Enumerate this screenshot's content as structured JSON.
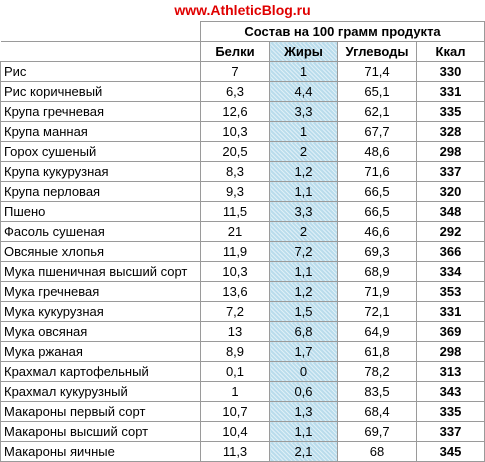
{
  "site_title": "www.AthleticBlog.ru",
  "table": {
    "group_header": "Состав на 100 грамм продукта",
    "columns": [
      "Белки",
      "Жиры",
      "Углеводы",
      "Ккал"
    ],
    "rows": [
      {
        "name": "Рис",
        "protein": "7",
        "fat": "1",
        "carbs": "71,4",
        "kcal": "330"
      },
      {
        "name": "Рис коричневый",
        "protein": "6,3",
        "fat": "4,4",
        "carbs": "65,1",
        "kcal": "331"
      },
      {
        "name": "Крупа гречневая",
        "protein": "12,6",
        "fat": "3,3",
        "carbs": "62,1",
        "kcal": "335"
      },
      {
        "name": "Крупа манная",
        "protein": "10,3",
        "fat": "1",
        "carbs": "67,7",
        "kcal": "328"
      },
      {
        "name": "Горох сушеный",
        "protein": "20,5",
        "fat": "2",
        "carbs": "48,6",
        "kcal": "298"
      },
      {
        "name": "Крупа кукурузная",
        "protein": "8,3",
        "fat": "1,2",
        "carbs": "71,6",
        "kcal": "337"
      },
      {
        "name": "Крупа перловая",
        "protein": "9,3",
        "fat": "1,1",
        "carbs": "66,5",
        "kcal": "320"
      },
      {
        "name": "Пшено",
        "protein": "11,5",
        "fat": "3,3",
        "carbs": "66,5",
        "kcal": "348"
      },
      {
        "name": "Фасоль сушеная",
        "protein": "21",
        "fat": "2",
        "carbs": "46,6",
        "kcal": "292"
      },
      {
        "name": "Овсяные хлопья",
        "protein": "11,9",
        "fat": "7,2",
        "carbs": "69,3",
        "kcal": "366"
      },
      {
        "name": "Мука пшеничная высший сорт",
        "protein": "10,3",
        "fat": "1,1",
        "carbs": "68,9",
        "kcal": "334"
      },
      {
        "name": "Мука гречневая",
        "protein": "13,6",
        "fat": "1,2",
        "carbs": "71,9",
        "kcal": "353"
      },
      {
        "name": "Мука кукурузная",
        "protein": "7,2",
        "fat": "1,5",
        "carbs": "72,1",
        "kcal": "331"
      },
      {
        "name": "Мука овсяная",
        "protein": "13",
        "fat": "6,8",
        "carbs": "64,9",
        "kcal": "369"
      },
      {
        "name": "Мука ржаная",
        "protein": "8,9",
        "fat": "1,7",
        "carbs": "61,8",
        "kcal": "298"
      },
      {
        "name": "Крахмал картофельный",
        "protein": "0,1",
        "fat": "0",
        "carbs": "78,2",
        "kcal": "313"
      },
      {
        "name": "Крахмал кукурузный",
        "protein": "1",
        "fat": "0,6",
        "carbs": "83,5",
        "kcal": "343"
      },
      {
        "name": "Макароны первый сорт",
        "protein": "10,7",
        "fat": "1,3",
        "carbs": "68,4",
        "kcal": "335"
      },
      {
        "name": "Макароны высший сорт",
        "protein": "10,4",
        "fat": "1,1",
        "carbs": "69,7",
        "kcal": "337"
      },
      {
        "name": "Макароны яичные",
        "protein": "11,3",
        "fat": "2,1",
        "carbs": "68",
        "kcal": "345"
      }
    ]
  }
}
